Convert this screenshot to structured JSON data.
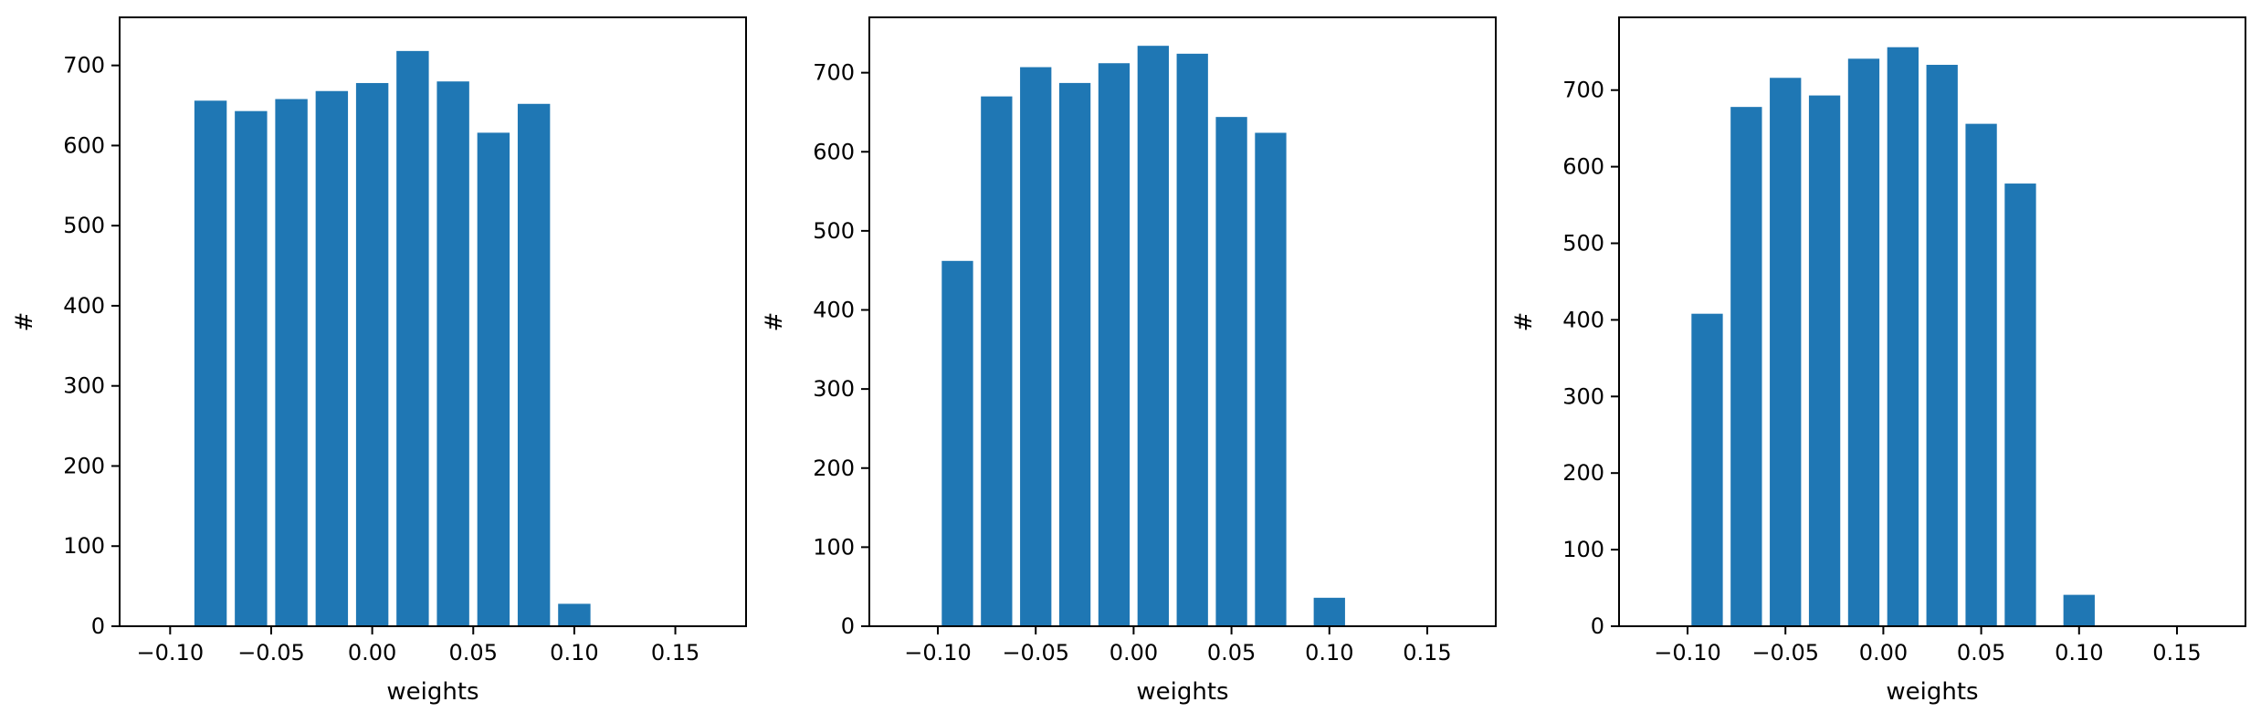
{
  "chart_data": [
    {
      "type": "bar",
      "title": "",
      "xlabel": "weights",
      "ylabel": "#",
      "xlim": [
        -0.125,
        0.185
      ],
      "ylim": [
        0,
        760
      ],
      "bar_width": 0.016,
      "x": [
        -0.08,
        -0.06,
        -0.04,
        -0.02,
        0.0,
        0.02,
        0.04,
        0.06,
        0.08,
        0.1
      ],
      "values": [
        656,
        643,
        658,
        668,
        678,
        718,
        680,
        616,
        652,
        28
      ],
      "xticks": [
        -0.1,
        -0.05,
        0.0,
        0.05,
        0.1,
        0.15
      ],
      "xtick_labels": [
        "−0.10",
        "−0.05",
        "0.00",
        "0.05",
        "0.10",
        "0.15"
      ],
      "yticks": [
        0,
        100,
        200,
        300,
        400,
        500,
        600,
        700
      ],
      "ytick_labels": [
        "0",
        "100",
        "200",
        "300",
        "400",
        "500",
        "600",
        "700"
      ],
      "grid": false,
      "legend": "none"
    },
    {
      "type": "bar",
      "title": "",
      "xlabel": "weights",
      "ylabel": "#",
      "xlim": [
        -0.135,
        0.185
      ],
      "ylim": [
        0,
        770
      ],
      "bar_width": 0.016,
      "x": [
        -0.09,
        -0.07,
        -0.05,
        -0.03,
        -0.01,
        0.01,
        0.03,
        0.05,
        0.07,
        0.1
      ],
      "values": [
        462,
        670,
        707,
        687,
        712,
        734,
        724,
        644,
        624,
        36
      ],
      "xticks": [
        -0.1,
        -0.05,
        0.0,
        0.05,
        0.1,
        0.15
      ],
      "xtick_labels": [
        "−0.10",
        "−0.05",
        "0.00",
        "0.05",
        "0.10",
        "0.15"
      ],
      "yticks": [
        0,
        100,
        200,
        300,
        400,
        500,
        600,
        700
      ],
      "ytick_labels": [
        "0",
        "100",
        "200",
        "300",
        "400",
        "500",
        "600",
        "700"
      ],
      "grid": false,
      "legend": "none"
    },
    {
      "type": "bar",
      "title": "",
      "xlabel": "weights",
      "ylabel": "#",
      "xlim": [
        -0.135,
        0.185
      ],
      "ylim": [
        0,
        795
      ],
      "bar_width": 0.016,
      "x": [
        -0.09,
        -0.07,
        -0.05,
        -0.03,
        -0.01,
        0.01,
        0.03,
        0.05,
        0.07,
        0.1
      ],
      "values": [
        408,
        678,
        716,
        693,
        741,
        756,
        733,
        656,
        578,
        41
      ],
      "xticks": [
        -0.1,
        -0.05,
        0.0,
        0.05,
        0.1,
        0.15
      ],
      "xtick_labels": [
        "−0.10",
        "−0.05",
        "0.00",
        "0.05",
        "0.10",
        "0.15"
      ],
      "yticks": [
        0,
        100,
        200,
        300,
        400,
        500,
        600,
        700
      ],
      "ytick_labels": [
        "0",
        "100",
        "200",
        "300",
        "400",
        "500",
        "600",
        "700"
      ],
      "grid": false,
      "legend": "none"
    }
  ],
  "colors": {
    "bar": "#1f77b4",
    "axis": "#000000",
    "background": "#ffffff"
  }
}
